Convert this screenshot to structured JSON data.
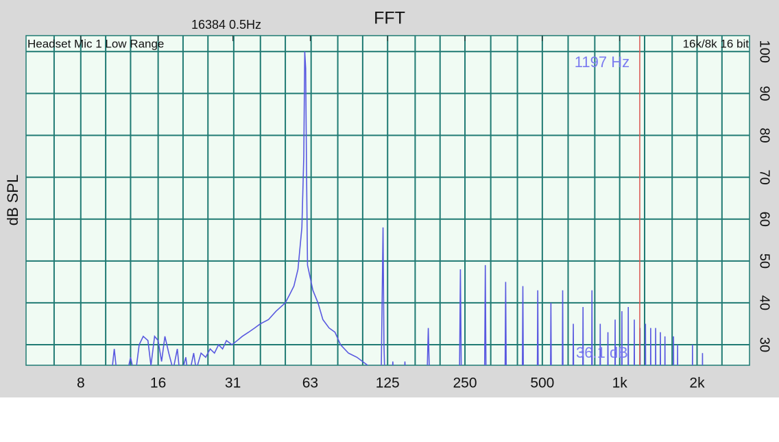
{
  "chart_data": {
    "type": "line",
    "title": "FFT",
    "subtitle": "16384  0.5Hz",
    "input_label": "Headset Mic 1 Low Range",
    "format_label": "16k/8k 16 bit",
    "y_label": "dB SPL",
    "x_scale": "log",
    "grid": true,
    "xlim": [
      4.9,
      3200
    ],
    "ylim": [
      25.1,
      103.8
    ],
    "xticks": [
      8,
      16,
      {
        "value": 31.25,
        "label": "31"
      },
      {
        "value": 62.5,
        "label": "63"
      },
      125,
      250,
      500,
      {
        "value": 1000,
        "label": "1k"
      },
      {
        "value": 2000,
        "label": "2k"
      }
    ],
    "x_grid": [
      6.3,
      8,
      10,
      12.5,
      16,
      20,
      25,
      31.5,
      40,
      50,
      63,
      80,
      100,
      125,
      160,
      200,
      250,
      315,
      400,
      500,
      630,
      800,
      1000,
      1250,
      1600,
      2000,
      2500
    ],
    "yticks": [
      30,
      40,
      50,
      60,
      70,
      80,
      90,
      100
    ],
    "cursor": {
      "x": 1197,
      "label": "1197 Hz",
      "value_label": "36.1 dB",
      "color": "#d9534f"
    },
    "x": [
      4.9,
      10.5,
      10.8,
      11.1,
      12,
      12.5,
      13,
      13.5,
      14,
      14.6,
      15,
      15.5,
      16,
      16.5,
      17,
      17.6,
      18.3,
      19,
      19.5,
      20.5,
      21,
      22,
      22.5,
      23.5,
      24.5,
      25.5,
      26.5,
      27.5,
      28.5,
      29.5,
      31,
      32.5,
      34,
      36,
      38,
      40,
      43,
      46,
      50,
      52,
      54,
      56,
      58,
      59,
      59.5,
      60,
      60.5,
      61,
      62,
      64,
      67,
      70,
      74,
      78,
      82,
      88,
      95,
      105,
      114,
      118,
      119,
      120,
      121,
      122,
      130,
      131,
      132,
      145,
      146,
      147,
      178,
      180,
      182,
      238,
      240,
      242,
      298,
      300,
      302,
      358,
      360,
      362,
      418,
      420,
      422,
      478,
      480,
      482,
      538,
      540,
      542,
      598,
      600,
      602,
      658,
      660,
      662,
      718,
      720,
      722,
      778,
      780,
      782,
      838,
      840,
      842,
      898,
      900,
      902,
      958,
      960,
      962,
      1018,
      1020,
      1022,
      1078,
      1080,
      1082,
      1138,
      1140,
      1142,
      1198,
      1200,
      1202,
      1258,
      1260,
      1262,
      1318,
      1320,
      1322,
      1378,
      1380,
      1382,
      1438,
      1440,
      1442,
      1498,
      1500,
      1502,
      1618,
      1620,
      1622,
      1678,
      1680,
      1682,
      1918,
      1920,
      1922,
      2098,
      2100,
      2102,
      3200
    ],
    "series": [
      {
        "color": "#5858e0",
        "values": [
          22,
          22,
          29,
          22,
          22,
          27,
          22,
          30,
          32,
          31,
          25,
          32,
          31,
          26,
          32,
          28,
          24,
          29,
          22,
          27,
          22,
          28,
          24,
          28,
          27,
          29,
          28,
          30,
          29,
          31,
          30,
          31,
          32,
          33,
          34,
          35,
          36,
          38,
          40,
          42,
          44,
          48,
          58,
          75,
          100,
          96,
          70,
          49,
          47,
          43,
          40,
          36,
          34,
          33,
          30,
          28,
          27,
          25,
          23,
          22,
          40,
          58,
          30,
          22,
          22,
          26,
          22,
          22,
          26,
          22,
          22,
          34,
          22,
          22,
          48,
          22,
          22,
          49,
          22,
          22,
          45,
          22,
          22,
          44,
          22,
          22,
          43,
          22,
          22,
          40,
          22,
          22,
          43,
          22,
          22,
          35,
          22,
          22,
          39,
          22,
          22,
          43,
          22,
          22,
          35,
          22,
          22,
          33,
          22,
          22,
          36,
          22,
          22,
          38,
          22,
          22,
          39,
          22,
          22,
          36,
          22,
          22,
          34,
          22,
          22,
          35,
          22,
          22,
          34,
          22,
          22,
          34,
          22,
          22,
          33,
          22,
          22,
          32,
          22,
          22,
          32,
          22,
          22,
          30,
          22,
          22,
          30,
          22,
          22,
          28,
          22,
          22
        ]
      }
    ]
  }
}
